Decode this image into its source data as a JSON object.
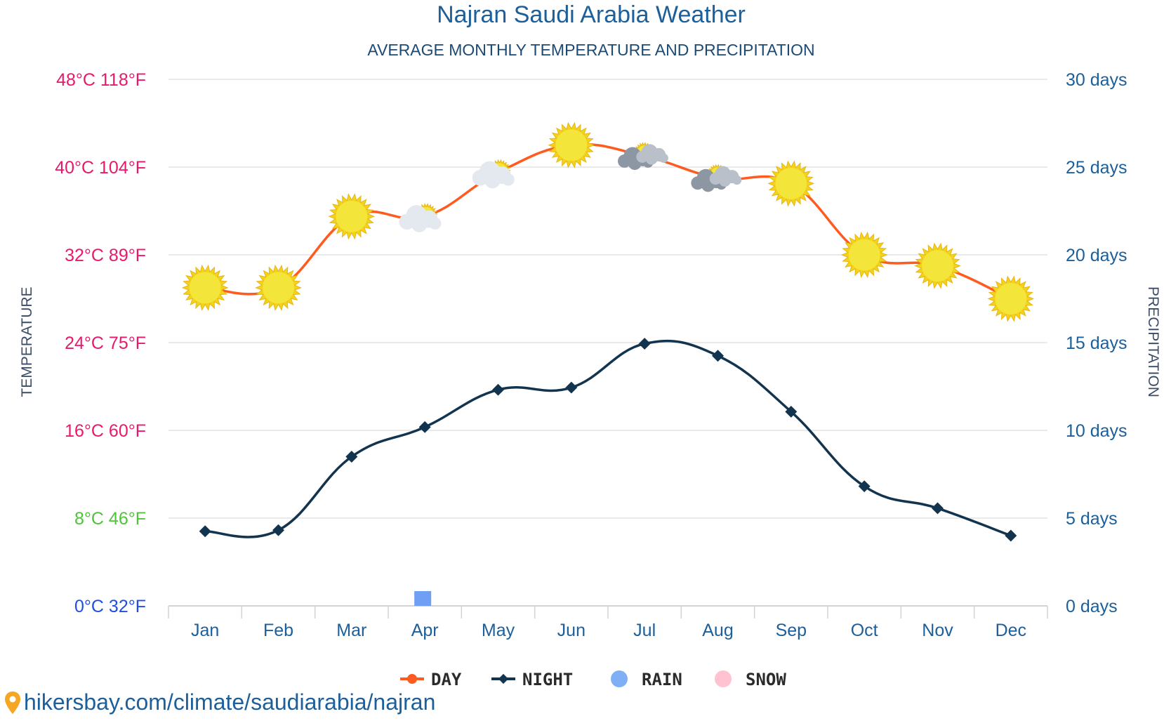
{
  "chart_data": {
    "type": "line",
    "title": "Najran Saudi Arabia Weather",
    "subtitle": "AVERAGE MONTHLY TEMPERATURE AND PRECIPITATION",
    "ylabel_left": "TEMPERATURE",
    "ylabel_right": "PRECIPITATION",
    "categories": [
      "Jan",
      "Feb",
      "Mar",
      "Apr",
      "May",
      "Jun",
      "Jul",
      "Aug",
      "Sep",
      "Oct",
      "Nov",
      "Dec"
    ],
    "y_ticks_left": [
      {
        "value": 48,
        "label": "48°C 118°F",
        "color": "#e8196c"
      },
      {
        "value": 40,
        "label": "40°C 104°F",
        "color": "#e8196c"
      },
      {
        "value": 32,
        "label": "32°C 89°F",
        "color": "#e8196c"
      },
      {
        "value": 24,
        "label": "24°C 75°F",
        "color": "#e8196c"
      },
      {
        "value": 16,
        "label": "16°C 60°F",
        "color": "#e8196c"
      },
      {
        "value": 8,
        "label": "8°C 46°F",
        "color": "#4fc43a"
      },
      {
        "value": 0,
        "label": "0°C 32°F",
        "color": "#1f4fe0"
      }
    ],
    "y_ticks_right": [
      {
        "value": 30,
        "label": "30 days"
      },
      {
        "value": 25,
        "label": "25 days"
      },
      {
        "value": 20,
        "label": "20 days"
      },
      {
        "value": 15,
        "label": "15 days"
      },
      {
        "value": 10,
        "label": "10 days"
      },
      {
        "value": 5,
        "label": "5 days"
      },
      {
        "value": 0,
        "label": "0 days"
      }
    ],
    "ylim_left": [
      0,
      48
    ],
    "ylim_right": [
      0,
      30
    ],
    "series": [
      {
        "name": "DAY",
        "color": "#ff5a1f",
        "values": [
          29,
          29,
          35.5,
          35.5,
          39.5,
          42,
          41,
          39,
          38.5,
          32,
          31,
          28
        ],
        "icons": [
          "sun",
          "sun",
          "sun",
          "partly-cloudy",
          "partly-cloudy",
          "sun",
          "cloudy-sun",
          "cloudy-sun",
          "sun",
          "sun",
          "sun",
          "sun"
        ]
      },
      {
        "name": "NIGHT",
        "color": "#13344e",
        "values": [
          6.8,
          6.9,
          13.6,
          16.3,
          19.7,
          19.9,
          23.9,
          22.8,
          17.7,
          10.9,
          8.9,
          6.4
        ]
      },
      {
        "name": "RAIN",
        "color": "#7fb0f5",
        "values": [
          0,
          0,
          0,
          0.6,
          0,
          0,
          0,
          0,
          0,
          0,
          0,
          0
        ]
      },
      {
        "name": "SNOW",
        "color": "#ffc2d1",
        "values": [
          0,
          0,
          0,
          0,
          0,
          0,
          0,
          0,
          0,
          0,
          0,
          0
        ]
      }
    ],
    "legend": [
      {
        "label": "DAY",
        "color": "#ff5a1f",
        "marker": "dot"
      },
      {
        "label": "NIGHT",
        "color": "#13344e",
        "marker": "diamond"
      },
      {
        "label": "RAIN",
        "color": "#7fb0f5",
        "marker": "circle"
      },
      {
        "label": "SNOW",
        "color": "#ffc2d1",
        "marker": "circle"
      }
    ],
    "legend_position": "bottom-center",
    "grid": true
  },
  "source": {
    "text": "hikersbay.com/climate/saudiarabia/najran",
    "pin_color": "#f5a623"
  }
}
